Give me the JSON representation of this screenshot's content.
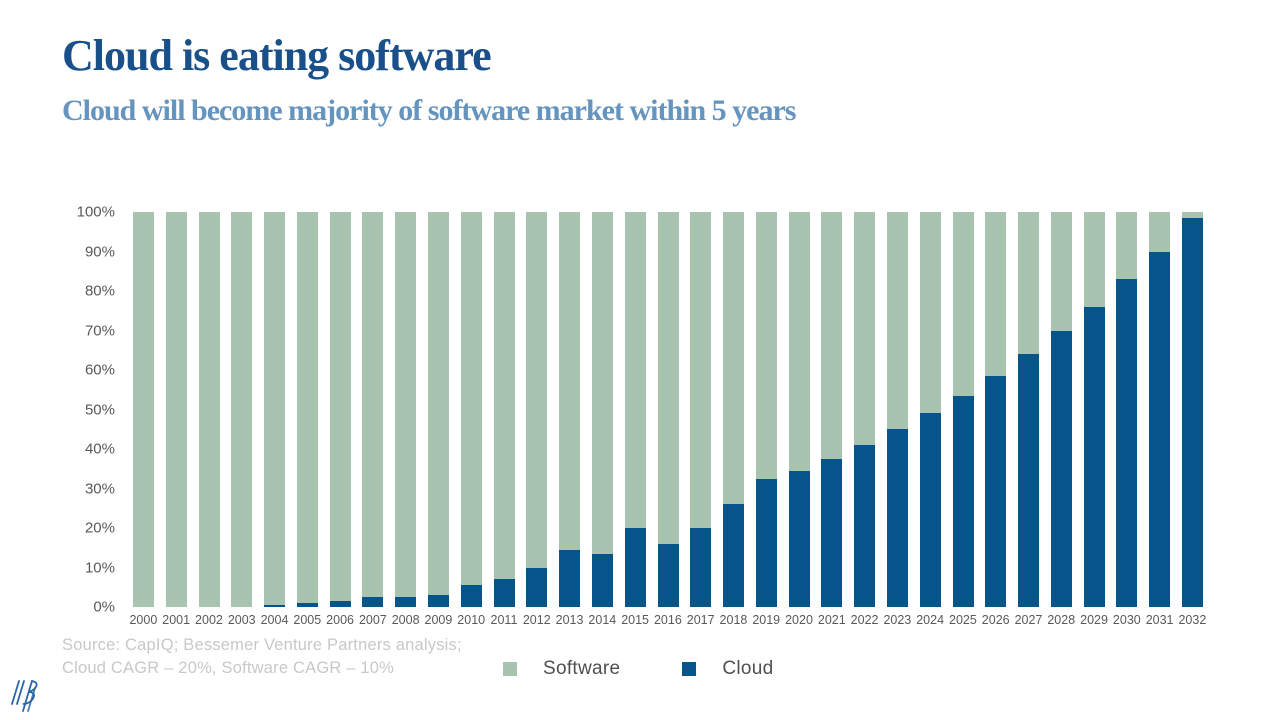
{
  "slide": {
    "title": "Cloud is eating software",
    "subtitle": "Cloud will become majority of software market within 5 years",
    "source_line1": "Source: CapIQ; Bessemer Venture Partners analysis;",
    "source_line2": "Cloud CAGR – 20%, Software CAGR – 10%",
    "logo": "bessemer-venture-partners-monogram"
  },
  "colors": {
    "title": "#1a5089",
    "subtitle": "#6594bf",
    "software": "#a9c3b1",
    "cloud": "#05548a",
    "axis_text": "#595959",
    "source_text": "#c8c8c8",
    "legend_text": "#4f4f4f",
    "logo": "#2a66a5"
  },
  "legend": {
    "items": [
      {
        "label": "Software",
        "color": "#a9c3b1"
      },
      {
        "label": "Cloud",
        "color": "#05548a"
      }
    ]
  },
  "chart_data": {
    "type": "bar",
    "stacked": true,
    "title": "Cloud is eating software",
    "xlabel": "",
    "ylabel": "",
    "ylim": [
      0,
      100
    ],
    "yticks": [
      0,
      10,
      20,
      30,
      40,
      50,
      60,
      70,
      80,
      90,
      100
    ],
    "ytick_format": "percent",
    "grid": false,
    "legend_position": "bottom",
    "categories": [
      2000,
      2001,
      2002,
      2003,
      2004,
      2005,
      2006,
      2007,
      2008,
      2009,
      2010,
      2011,
      2012,
      2013,
      2014,
      2015,
      2016,
      2017,
      2018,
      2019,
      2020,
      2021,
      2022,
      2023,
      2024,
      2025,
      2026,
      2027,
      2028,
      2029,
      2030,
      2031,
      2032
    ],
    "series": [
      {
        "name": "Cloud",
        "color": "#05548a",
        "values": [
          0,
          0,
          0,
          0,
          0.5,
          1,
          1.5,
          2.5,
          2.5,
          3,
          5.5,
          7,
          10,
          14.5,
          13.5,
          20,
          16,
          20,
          26,
          32.5,
          34.5,
          37.5,
          41,
          45,
          49,
          53.5,
          58.5,
          64,
          70,
          76,
          83,
          90,
          98.5
        ]
      },
      {
        "name": "Software",
        "color": "#a9c3b1",
        "values": [
          100,
          100,
          100,
          100,
          99.5,
          99,
          98.5,
          97.5,
          97.5,
          97,
          94.5,
          93,
          90,
          85.5,
          86.5,
          80,
          84,
          80,
          74,
          67.5,
          65.5,
          62.5,
          59,
          55,
          51,
          46.5,
          41.5,
          36,
          30,
          24,
          17,
          10,
          1.5
        ]
      }
    ]
  }
}
